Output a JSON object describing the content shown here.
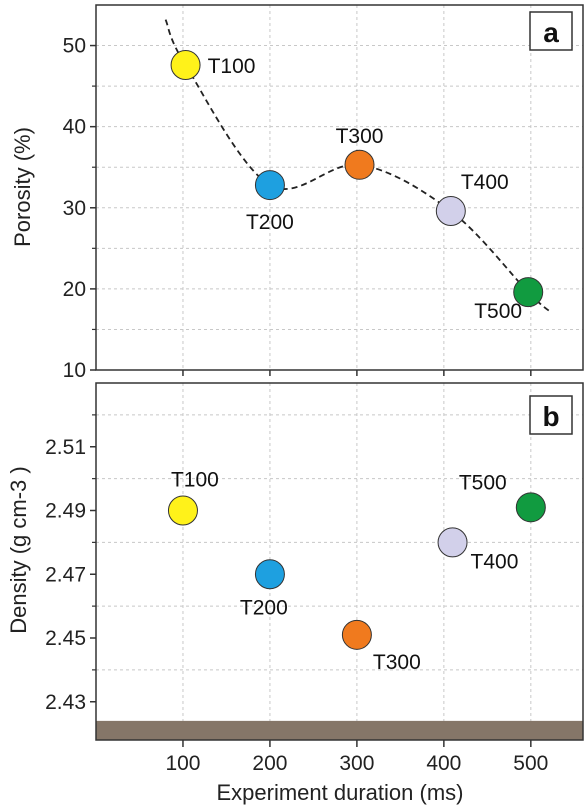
{
  "colors": {
    "T100": "#fff21a",
    "T200": "#1ea0e0",
    "T300": "#f07a1e",
    "T400": "#d2d0ea",
    "T500": "#119b40",
    "band": "#857668"
  },
  "chart_data": [
    {
      "panel": "a",
      "type": "scatter",
      "ylabel": "Porosity (%)",
      "xlim": [
        0,
        560
      ],
      "ylim": [
        10,
        55
      ],
      "yticks": [
        "10",
        "20",
        "30",
        "40",
        "50"
      ],
      "trend_line": "dashed",
      "points": [
        {
          "label": "T100",
          "x": 103,
          "y": 47.6
        },
        {
          "label": "T200",
          "x": 200,
          "y": 32.8
        },
        {
          "label": "T300",
          "x": 303,
          "y": 35.3
        },
        {
          "label": "T400",
          "x": 408,
          "y": 29.6
        },
        {
          "label": "T500",
          "x": 497,
          "y": 19.6
        }
      ]
    },
    {
      "panel": "b",
      "type": "scatter",
      "ylabel": "Density (g cm-3 )",
      "xlabel": "Experiment duration (ms)",
      "xlim": [
        0,
        560
      ],
      "ylim": [
        2.418,
        2.53
      ],
      "xticks": [
        "100",
        "200",
        "300",
        "400",
        "500"
      ],
      "yticks": [
        "2.43",
        "2.45",
        "2.47",
        "2.49",
        "2.51"
      ],
      "shaded_band_below": 2.424,
      "points": [
        {
          "label": "T100",
          "x": 100,
          "y": 2.49
        },
        {
          "label": "T200",
          "x": 200,
          "y": 2.47
        },
        {
          "label": "T300",
          "x": 300,
          "y": 2.451
        },
        {
          "label": "T400",
          "x": 410,
          "y": 2.48
        },
        {
          "label": "T500",
          "x": 500,
          "y": 2.491
        }
      ]
    }
  ]
}
